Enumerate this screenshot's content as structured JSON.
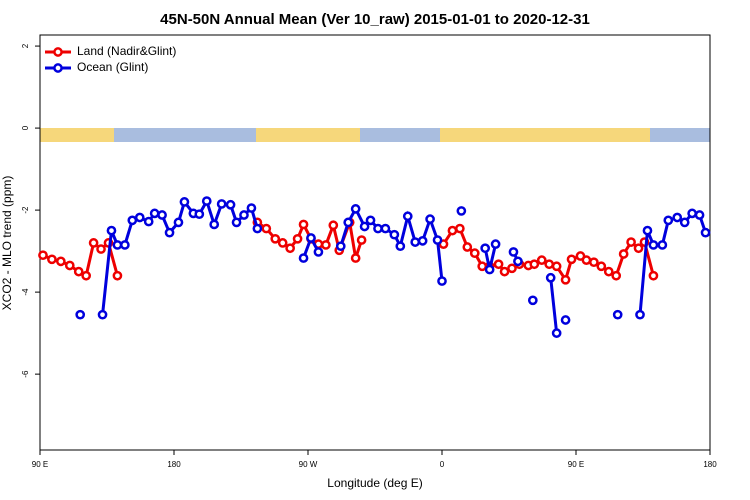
{
  "chart_data": {
    "type": "line",
    "title": "45N-50N Annual Mean (Ver 10_raw)   2015-01-01 to 2020-12-31",
    "x_label": "Longitude (deg E)",
    "y_label": "XCO2 - MLO trend (ppm)",
    "xlim": [
      90,
      540
    ],
    "xticks": [
      {
        "value": 90,
        "label": "90 E"
      },
      180,
      {
        "value": 270,
        "label": "90 W"
      },
      {
        "value": 360,
        "label": "0"
      },
      {
        "value": 450,
        "label": "90 E"
      },
      {
        "value": 540,
        "label": "180"
      }
    ],
    "ylim": [
      -7.85,
      2.27
    ],
    "yticks": [
      2,
      0,
      -2,
      -4,
      -6
    ],
    "legend": "top-left",
    "series": [
      {
        "name": "Land (Nadir&Glint)",
        "color": "#ee0000",
        "x": [
          92,
          98,
          104,
          110,
          116,
          121,
          126,
          131,
          136,
          142,
          200,
          236,
          242,
          248,
          253,
          258,
          263,
          267,
          272,
          277,
          282,
          287,
          291,
          298,
          302,
          306,
          330,
          361,
          367,
          372,
          377,
          382,
          387,
          392,
          398,
          402,
          407,
          412,
          418,
          422,
          427,
          432,
          437,
          443,
          447,
          453,
          457,
          462,
          467,
          472,
          477,
          482,
          487,
          492,
          496,
          502
        ],
        "values": [
          -3.1,
          -3.2,
          -3.25,
          -3.35,
          -3.5,
          -3.6,
          -2.8,
          -2.95,
          -2.8,
          -3.6,
          null,
          -2.3,
          -2.45,
          -2.7,
          -2.8,
          -2.93,
          -2.7,
          -2.35,
          -2.7,
          -2.83,
          -2.85,
          -2.37,
          -2.98,
          -2.3,
          -3.17,
          -2.73,
          null,
          -2.83,
          -2.5,
          -2.45,
          -2.9,
          -3.05,
          -3.37,
          -3.37,
          -3.32,
          -3.5,
          -3.42,
          -3.32,
          -3.35,
          -3.32,
          -3.22,
          -3.32,
          -3.37,
          -3.7,
          -3.2,
          -3.12,
          -3.22,
          -3.27,
          -3.37,
          -3.5,
          -3.6,
          -3.07,
          -2.78,
          -2.93,
          -2.78,
          -3.6
        ]
      },
      {
        "name": "Ocean (Glint)",
        "color": "#0000dd",
        "x": [
          117,
          120,
          132,
          138,
          142,
          147,
          152,
          157,
          163,
          167,
          172,
          177,
          183,
          187,
          193,
          197,
          202,
          207,
          212,
          218,
          222,
          227,
          232,
          236,
          250,
          267,
          272,
          277,
          282,
          292,
          297,
          302,
          308,
          312,
          317,
          322,
          328,
          332,
          337,
          342,
          347,
          352,
          357,
          360,
          365,
          373,
          380,
          389,
          392,
          396,
          400,
          408,
          411,
          415,
          421,
          425,
          433,
          437,
          440,
          443,
          470,
          478,
          485,
          493,
          498,
          502,
          508,
          512,
          518,
          523,
          528,
          533,
          537
        ],
        "values": [
          -4.55,
          null,
          -4.55,
          -2.5,
          -2.85,
          -2.85,
          -2.25,
          -2.18,
          -2.28,
          -2.08,
          -2.12,
          -2.55,
          -2.3,
          -1.8,
          -2.08,
          -2.1,
          -1.78,
          -2.35,
          -1.85,
          -1.87,
          -2.3,
          -2.12,
          -1.95,
          -2.45,
          null,
          -3.17,
          -2.68,
          -3.02,
          null,
          -2.88,
          -2.3,
          -1.97,
          -2.4,
          -2.25,
          -2.45,
          -2.45,
          -2.6,
          -2.88,
          -2.15,
          -2.78,
          -2.75,
          -2.22,
          -2.73,
          -3.73,
          null,
          -2.02,
          null,
          -2.93,
          -3.45,
          -2.83,
          null,
          -3.02,
          -3.25,
          null,
          -4.2,
          null,
          -3.65,
          -5.0,
          null,
          -4.68,
          null,
          -4.55,
          null,
          -4.55,
          -2.5,
          -2.85,
          -2.85,
          -2.25,
          -2.18,
          -2.3,
          -2.08,
          -2.12,
          -2.55
        ]
      }
    ]
  }
}
